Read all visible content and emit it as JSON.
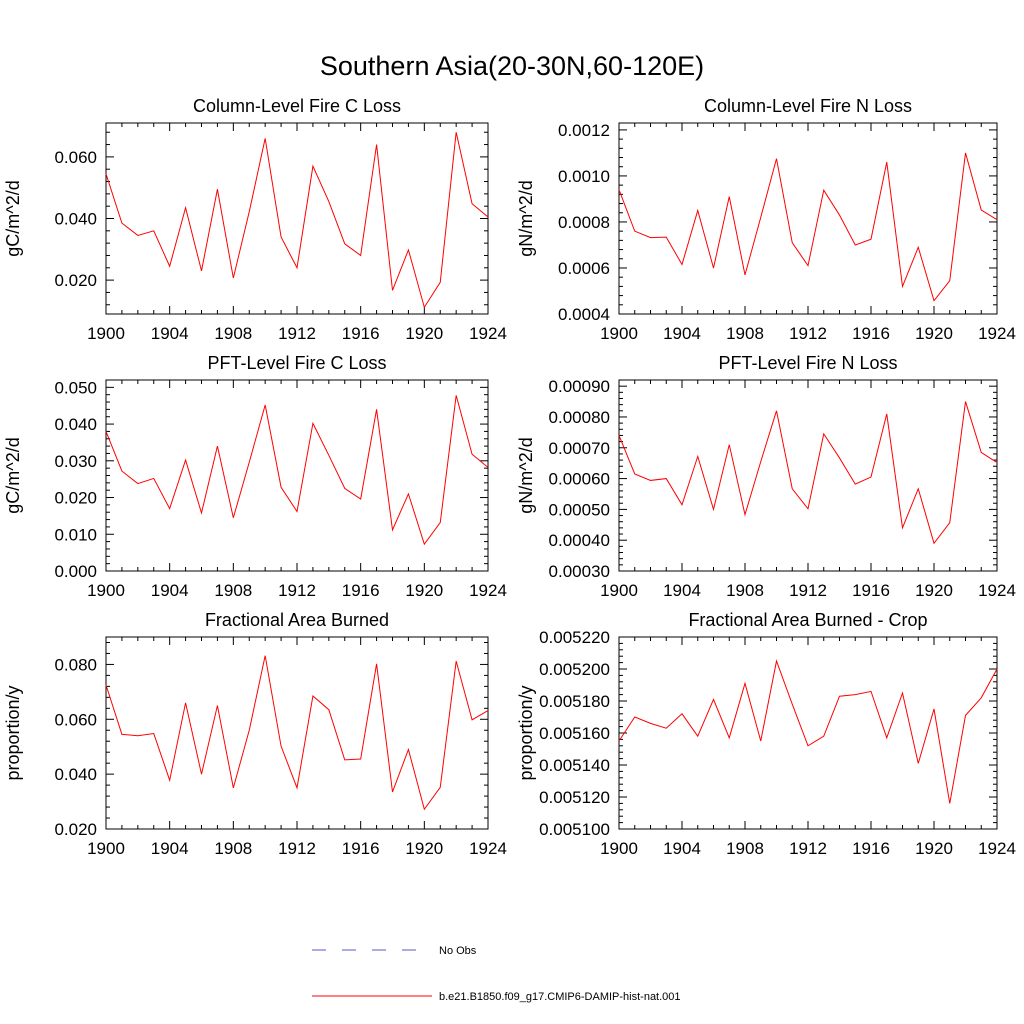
{
  "figure": {
    "title": "Southern Asia(20-30N,60-120E)",
    "legend": [
      {
        "label": "No Obs",
        "color": "#5a5ac8",
        "dash": true
      },
      {
        "label": "b.e21.B1850.f09_g17.CMIP6-DAMIP-hist-nat.001",
        "color": "#ff0000",
        "dash": false
      }
    ]
  },
  "chart_data": [
    {
      "type": "line",
      "title": "Column-Level Fire C Loss",
      "ylabel": "gC/m^2/d",
      "xlabel": "",
      "xlim": [
        1900,
        1924
      ],
      "ylim": [
        0.009,
        0.071
      ],
      "xticks": [
        1900,
        1904,
        1908,
        1912,
        1916,
        1920,
        1924
      ],
      "xtick_labels": [
        "1900",
        "1904",
        "1908",
        "1912",
        "1916",
        "1920",
        "1924"
      ],
      "yticks": [
        0.02,
        0.04,
        0.06
      ],
      "ytick_labels": [
        "0.020",
        "0.040",
        "0.060"
      ],
      "series": [
        {
          "color": "#ff0000",
          "x": [
            1900,
            1901,
            1902,
            1903,
            1904,
            1905,
            1906,
            1907,
            1908,
            1909,
            1910,
            1911,
            1912,
            1913,
            1914,
            1915,
            1916,
            1917,
            1918,
            1919,
            1920,
            1921,
            1922,
            1923,
            1924
          ],
          "y": [
            0.0545,
            0.0385,
            0.0345,
            0.036,
            0.0245,
            0.0435,
            0.023,
            0.0495,
            0.0207,
            0.0422,
            0.066,
            0.034,
            0.024,
            0.057,
            0.0455,
            0.0318,
            0.028,
            0.064,
            0.0167,
            0.0298,
            0.0112,
            0.0193,
            0.068,
            0.0448,
            0.0405
          ]
        }
      ]
    },
    {
      "type": "line",
      "title": "Column-Level Fire N Loss",
      "ylabel": "gN/m^2/d",
      "xlabel": "",
      "xlim": [
        1900,
        1924
      ],
      "ylim": [
        0.0004,
        0.00123
      ],
      "xticks": [
        1900,
        1904,
        1908,
        1912,
        1916,
        1920,
        1924
      ],
      "xtick_labels": [
        "1900",
        "1904",
        "1908",
        "1912",
        "1916",
        "1920",
        "1924"
      ],
      "yticks": [
        0.0004,
        0.0006,
        0.0008,
        0.001,
        0.0012
      ],
      "ytick_labels": [
        "0.0004",
        "0.0006",
        "0.0008",
        "0.0010",
        "0.0012"
      ],
      "series": [
        {
          "color": "#ff0000",
          "x": [
            1900,
            1901,
            1902,
            1903,
            1904,
            1905,
            1906,
            1907,
            1908,
            1909,
            1910,
            1911,
            1912,
            1913,
            1914,
            1915,
            1916,
            1917,
            1918,
            1919,
            1920,
            1921,
            1922,
            1923,
            1924
          ],
          "y": [
            0.00094,
            0.00076,
            0.000732,
            0.000734,
            0.000615,
            0.00085,
            0.0006,
            0.00091,
            0.00057,
            0.00082,
            0.001075,
            0.00071,
            0.00061,
            0.000938,
            0.00083,
            0.0007,
            0.000725,
            0.00106,
            0.00052,
            0.00069,
            0.000458,
            0.000545,
            0.0011,
            0.000852,
            0.00081
          ]
        }
      ]
    },
    {
      "type": "line",
      "title": "PFT-Level Fire C Loss",
      "ylabel": "gC/m^2/d",
      "xlabel": "",
      "xlim": [
        1900,
        1924
      ],
      "ylim": [
        0.0,
        0.052
      ],
      "xticks": [
        1900,
        1904,
        1908,
        1912,
        1916,
        1920,
        1924
      ],
      "xtick_labels": [
        "1900",
        "1904",
        "1908",
        "1912",
        "1916",
        "1920",
        "1924"
      ],
      "yticks": [
        0.0,
        0.01,
        0.02,
        0.03,
        0.04,
        0.05
      ],
      "ytick_labels": [
        "0.000",
        "0.010",
        "0.020",
        "0.030",
        "0.040",
        "0.050"
      ],
      "series": [
        {
          "color": "#ff0000",
          "x": [
            1900,
            1901,
            1902,
            1903,
            1904,
            1905,
            1906,
            1907,
            1908,
            1909,
            1910,
            1911,
            1912,
            1913,
            1914,
            1915,
            1916,
            1917,
            1918,
            1919,
            1920,
            1921,
            1922,
            1923,
            1924
          ],
          "y": [
            0.038,
            0.0272,
            0.0238,
            0.0252,
            0.017,
            0.0302,
            0.0158,
            0.034,
            0.0145,
            0.0296,
            0.0452,
            0.0228,
            0.0162,
            0.0402,
            0.0315,
            0.0225,
            0.0196,
            0.044,
            0.0112,
            0.021,
            0.0073,
            0.0132,
            0.0478,
            0.0318,
            0.0282
          ]
        }
      ]
    },
    {
      "type": "line",
      "title": "PFT-Level Fire N Loss",
      "ylabel": "gN/m^2/d",
      "xlabel": "",
      "xlim": [
        1900,
        1924
      ],
      "ylim": [
        0.0003,
        0.00092
      ],
      "xticks": [
        1900,
        1904,
        1908,
        1912,
        1916,
        1920,
        1924
      ],
      "xtick_labels": [
        "1900",
        "1904",
        "1908",
        "1912",
        "1916",
        "1920",
        "1924"
      ],
      "yticks": [
        0.0003,
        0.0004,
        0.0005,
        0.0006,
        0.0007,
        0.0008,
        0.0009
      ],
      "ytick_labels": [
        "0.00030",
        "0.00040",
        "0.00050",
        "0.00060",
        "0.00070",
        "0.00080",
        "0.00090"
      ],
      "series": [
        {
          "color": "#ff0000",
          "x": [
            1900,
            1901,
            1902,
            1903,
            1904,
            1905,
            1906,
            1907,
            1908,
            1909,
            1910,
            1911,
            1912,
            1913,
            1914,
            1915,
            1916,
            1917,
            1918,
            1919,
            1920,
            1921,
            1922,
            1923,
            1924
          ],
          "y": [
            0.00074,
            0.000615,
            0.000594,
            0.0006,
            0.000515,
            0.000672,
            0.0005,
            0.00071,
            0.000483,
            0.000655,
            0.00082,
            0.000567,
            0.000502,
            0.000745,
            0.000667,
            0.000582,
            0.000605,
            0.00081,
            0.00044,
            0.000567,
            0.00039,
            0.000457,
            0.00085,
            0.000685,
            0.000652
          ]
        }
      ]
    },
    {
      "type": "line",
      "title": "Fractional Area Burned",
      "ylabel": "proportion/y",
      "xlabel": "",
      "xlim": [
        1900,
        1924
      ],
      "ylim": [
        0.02,
        0.09
      ],
      "xticks": [
        1900,
        1904,
        1908,
        1912,
        1916,
        1920,
        1924
      ],
      "xtick_labels": [
        "1900",
        "1904",
        "1908",
        "1912",
        "1916",
        "1920",
        "1924"
      ],
      "yticks": [
        0.02,
        0.04,
        0.06,
        0.08
      ],
      "ytick_labels": [
        "0.020",
        "0.040",
        "0.060",
        "0.080"
      ],
      "series": [
        {
          "color": "#ff0000",
          "x": [
            1900,
            1901,
            1902,
            1903,
            1904,
            1905,
            1906,
            1907,
            1908,
            1909,
            1910,
            1911,
            1912,
            1913,
            1914,
            1915,
            1916,
            1917,
            1918,
            1919,
            1920,
            1921,
            1922,
            1923,
            1924
          ],
          "y": [
            0.0725,
            0.0545,
            0.054,
            0.0548,
            0.0378,
            0.066,
            0.04,
            0.065,
            0.035,
            0.056,
            0.0832,
            0.0502,
            0.035,
            0.0685,
            0.0635,
            0.0452,
            0.0455,
            0.0802,
            0.0335,
            0.049,
            0.0272,
            0.0352,
            0.0812,
            0.0598,
            0.0632
          ]
        }
      ]
    },
    {
      "type": "line",
      "title": "Fractional Area Burned - Crop",
      "ylabel": "proportion/y",
      "xlabel": "",
      "xlim": [
        1900,
        1924
      ],
      "ylim": [
        0.0051,
        0.00522
      ],
      "xticks": [
        1900,
        1904,
        1908,
        1912,
        1916,
        1920,
        1924
      ],
      "xtick_labels": [
        "1900",
        "1904",
        "1908",
        "1912",
        "1916",
        "1920",
        "1924"
      ],
      "yticks": [
        0.0051,
        0.00512,
        0.00514,
        0.00516,
        0.00518,
        0.0052,
        0.00522
      ],
      "ytick_labels": [
        "0.005100",
        "0.005120",
        "0.005140",
        "0.005160",
        "0.005180",
        "0.005200",
        "0.005220"
      ],
      "series": [
        {
          "color": "#ff0000",
          "x": [
            1900,
            1901,
            1902,
            1903,
            1904,
            1905,
            1906,
            1907,
            1908,
            1909,
            1910,
            1911,
            1912,
            1913,
            1914,
            1915,
            1916,
            1917,
            1918,
            1919,
            1920,
            1921,
            1922,
            1923,
            1924
          ],
          "y": [
            0.005155,
            0.00517,
            0.005166,
            0.005163,
            0.005172,
            0.005158,
            0.005181,
            0.005157,
            0.005191,
            0.005155,
            0.005205,
            0.005178,
            0.005152,
            0.005158,
            0.005183,
            0.005184,
            0.005186,
            0.005157,
            0.005185,
            0.005141,
            0.005175,
            0.005116,
            0.005171,
            0.005182,
            0.0052
          ]
        }
      ]
    }
  ]
}
